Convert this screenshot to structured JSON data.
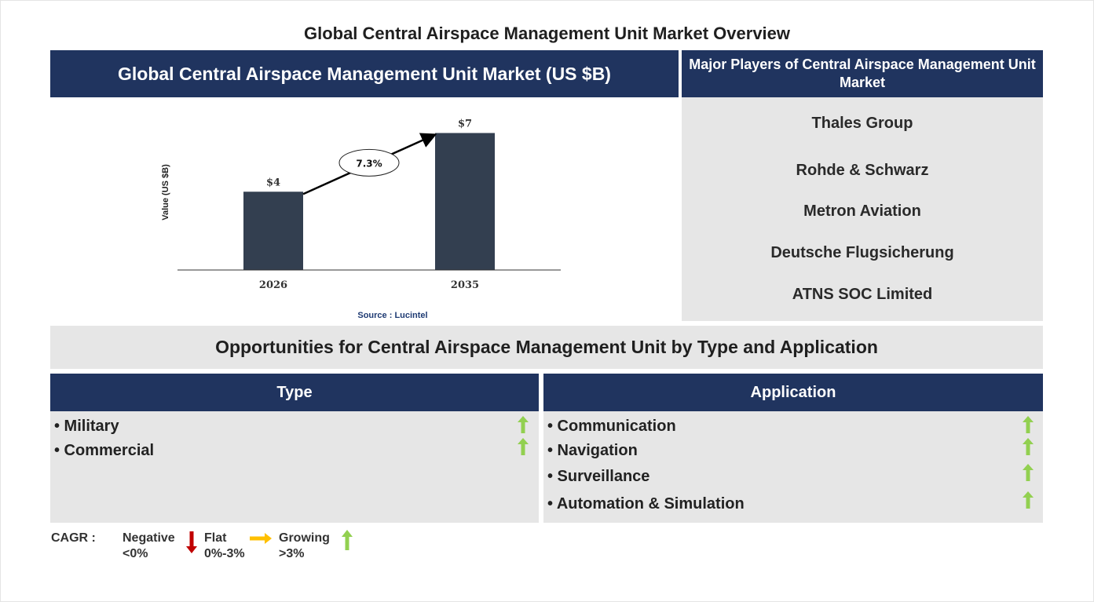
{
  "title": "Global Central Airspace Management Unit Market Overview",
  "chart_panel": {
    "header": "Global Central Airspace Management Unit Market (US $B)",
    "source": "Source : Lucintel"
  },
  "chart_data": {
    "type": "bar",
    "categories": [
      "2026",
      "2035"
    ],
    "values": [
      4,
      7
    ],
    "data_labels": [
      "$4",
      "$7"
    ],
    "ylabel": "Value (US $B)",
    "xlabel": "",
    "ylim": [
      0,
      7.5
    ],
    "grid": false,
    "cagr_annotation": "7.3%",
    "colors": {
      "bar": "#333f50",
      "arrow": "#000000"
    }
  },
  "players": {
    "header": "Major Players of Central Airspace Management Unit Market",
    "items": [
      "Thales Group",
      "Rohde & Schwarz",
      "Metron Aviation",
      "Deutsche Flugsicherung",
      "ATNS SOC Limited"
    ]
  },
  "opportunities": {
    "header": "Opportunities for Central Airspace Management Unit by Type and Application",
    "type": {
      "header": "Type",
      "items": [
        "• Military",
        "• Commercial"
      ],
      "trend": [
        "growing",
        "growing"
      ]
    },
    "application": {
      "header": "Application",
      "items": [
        "• Communication",
        "• Navigation",
        "• Surveillance",
        "• Automation & Simulation"
      ],
      "trend": [
        "growing",
        "growing",
        "growing",
        "growing"
      ]
    }
  },
  "legend": {
    "label": "CAGR :",
    "negative": {
      "line1": "Negative",
      "line2": "<0%",
      "icon": "down-arrow-icon",
      "color": "#c00000"
    },
    "flat": {
      "line1": "Flat",
      "line2": "0%-3%",
      "icon": "right-arrow-icon",
      "color": "#ffc000"
    },
    "growing": {
      "line1": "Growing",
      "line2": ">3%",
      "icon": "up-arrow-icon",
      "color": "#92d050"
    }
  }
}
